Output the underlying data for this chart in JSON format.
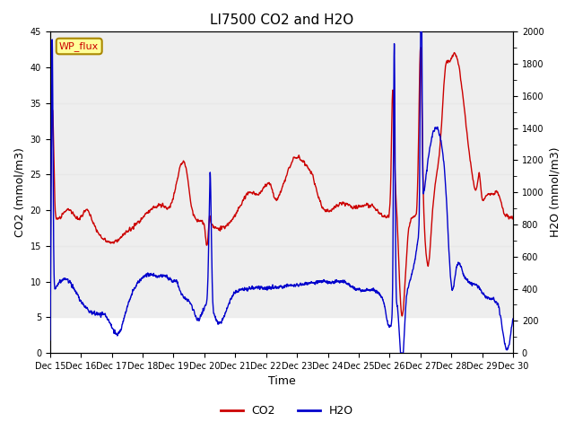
{
  "title": "LI7500 CO2 and H2O",
  "xlabel": "Time",
  "ylabel_left": "CO2 (mmol/m3)",
  "ylabel_right": "H2O (mmol/m3)",
  "xlim": [
    0,
    15
  ],
  "ylim_left": [
    0,
    45
  ],
  "ylim_right": [
    0,
    2000
  ],
  "yticks_left": [
    0,
    5,
    10,
    15,
    20,
    25,
    30,
    35,
    40,
    45
  ],
  "yticks_right": [
    0,
    200,
    400,
    600,
    800,
    1000,
    1200,
    1400,
    1600,
    1800,
    2000
  ],
  "xtick_labels": [
    "Dec 15",
    "Dec 16",
    "Dec 17",
    "Dec 18",
    "Dec 19",
    "Dec 20",
    "Dec 21",
    "Dec 22",
    "Dec 23",
    "Dec 24",
    "Dec 25",
    "Dec 26",
    "Dec 27",
    "Dec 28",
    "Dec 29",
    "Dec 30"
  ],
  "legend_labels": [
    "CO2",
    "H2O"
  ],
  "co2_color": "#cc0000",
  "h2o_color": "#0000cc",
  "annotation_text": "WP_flux",
  "annotation_color": "#cc0000",
  "annotation_bg": "#ffff99",
  "bg_band_color": "#e8e8e8",
  "title_fontsize": 11,
  "linewidth": 1.0
}
